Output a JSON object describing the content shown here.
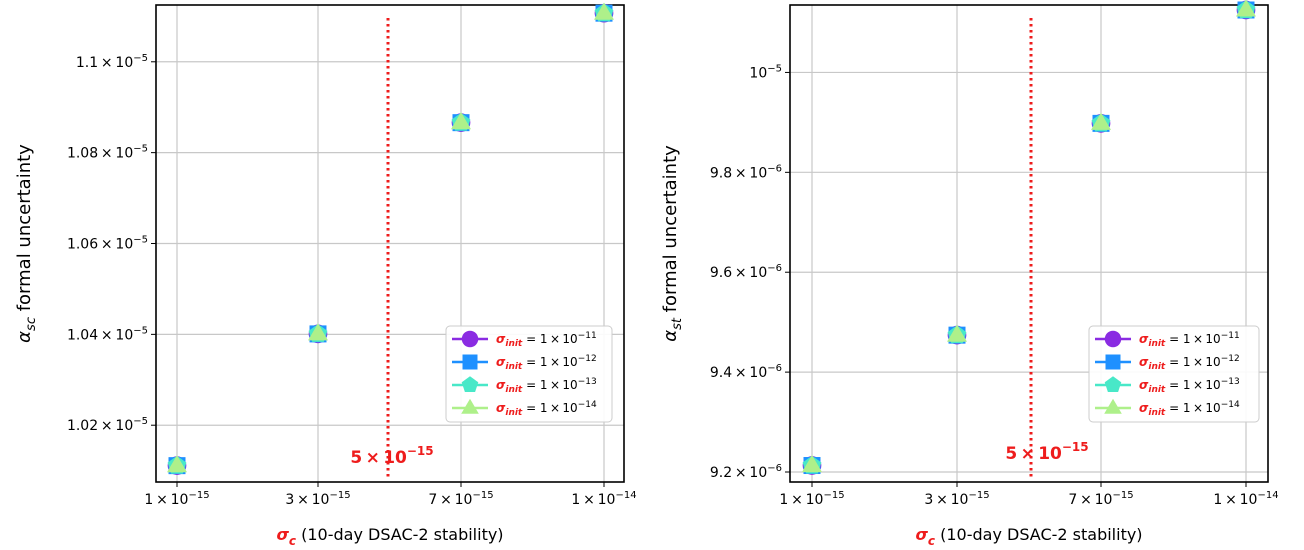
{
  "chart_data": [
    {
      "type": "scatter",
      "ylabel": {
        "symbol": "α",
        "sub": "sc",
        "text": "formal uncertainty"
      },
      "xlabel": {
        "symbol": "σ",
        "sub": "c",
        "text": "(10-day DSAC-2 stability)"
      },
      "x": [
        "1e-15",
        "3e-15",
        "7e-15",
        "1e-14"
      ],
      "xtick_labels": [
        {
          "mant": "1",
          "exp": "−15"
        },
        {
          "mant": "3",
          "exp": "−15"
        },
        {
          "mant": "7",
          "exp": "−15"
        },
        {
          "mant": "1",
          "exp": "−14"
        }
      ],
      "ylim": [
        1.0075e-05,
        1.1125e-05
      ],
      "yticks": [
        1.02e-05,
        1.04e-05,
        1.06e-05,
        1.08e-05,
        1.1e-05
      ],
      "ytick_labels": [
        {
          "mant": "1.02",
          "exp": "−5"
        },
        {
          "mant": "1.04",
          "exp": "−5"
        },
        {
          "mant": "1.06",
          "exp": "−5"
        },
        {
          "mant": "1.08",
          "exp": "−5"
        },
        {
          "mant": "1.1",
          "exp": "−5"
        }
      ],
      "vline": {
        "x": "5e-15",
        "label": {
          "mant": "5",
          "exp": "−15"
        },
        "color": "#ee1c1c"
      },
      "series": [
        {
          "name": {
            "symbol": "σ",
            "sub": "init",
            "mant": "1",
            "exp": "−11"
          },
          "marker": "circle",
          "color": "#8a2be2",
          "values": [
            1.0111e-05,
            1.0401e-05,
            1.0866e-05,
            1.1107e-05
          ]
        },
        {
          "name": {
            "symbol": "σ",
            "sub": "init",
            "mant": "1",
            "exp": "−12"
          },
          "marker": "square",
          "color": "#1e90ff",
          "values": [
            1.0111e-05,
            1.0401e-05,
            1.0866e-05,
            1.1107e-05
          ]
        },
        {
          "name": {
            "symbol": "σ",
            "sub": "init",
            "mant": "1",
            "exp": "−13"
          },
          "marker": "pentagon",
          "color": "#48e8c8",
          "values": [
            1.0111e-05,
            1.0401e-05,
            1.0866e-05,
            1.1107e-05
          ]
        },
        {
          "name": {
            "symbol": "σ",
            "sub": "init",
            "mant": "1",
            "exp": "−14"
          },
          "marker": "triangle",
          "color": "#aef08a",
          "values": [
            1.0111e-05,
            1.0401e-05,
            1.0866e-05,
            1.1107e-05
          ]
        }
      ],
      "grid": true,
      "legend": "lower-right"
    },
    {
      "type": "scatter",
      "ylabel": {
        "symbol": "α",
        "sub": "st",
        "text": "formal uncertainty"
      },
      "xlabel": {
        "symbol": "σ",
        "sub": "c",
        "text": "(10-day DSAC-2 stability)"
      },
      "x": [
        "1e-15",
        "3e-15",
        "7e-15",
        "1e-14"
      ],
      "xtick_labels": [
        {
          "mant": "1",
          "exp": "−15"
        },
        {
          "mant": "3",
          "exp": "−15"
        },
        {
          "mant": "7",
          "exp": "−15"
        },
        {
          "mant": "1",
          "exp": "−14"
        }
      ],
      "ylim": [
        9.18e-06,
        1.0135e-05
      ],
      "yticks": [
        9.2e-06,
        9.4e-06,
        9.6e-06,
        9.8e-06,
        1e-05
      ],
      "ytick_labels": [
        {
          "mant": "9.2",
          "exp": "−6"
        },
        {
          "mant": "9.4",
          "exp": "−6"
        },
        {
          "mant": "9.6",
          "exp": "−6"
        },
        {
          "mant": "9.8",
          "exp": "−6"
        },
        {
          "mant": "",
          "exp": "−5"
        }
      ],
      "vline": {
        "x": "5e-15",
        "label": {
          "mant": "5",
          "exp": "−15"
        },
        "color": "#ee1c1c"
      },
      "series": [
        {
          "name": {
            "symbol": "σ",
            "sub": "init",
            "mant": "1",
            "exp": "−11"
          },
          "marker": "circle",
          "color": "#8a2be2",
          "values": [
            9.213e-06,
            9.474e-06,
            9.898e-06,
            1.0125e-05
          ]
        },
        {
          "name": {
            "symbol": "σ",
            "sub": "init",
            "mant": "1",
            "exp": "−12"
          },
          "marker": "square",
          "color": "#1e90ff",
          "values": [
            9.213e-06,
            9.474e-06,
            9.898e-06,
            1.0125e-05
          ]
        },
        {
          "name": {
            "symbol": "σ",
            "sub": "init",
            "mant": "1",
            "exp": "−13"
          },
          "marker": "pentagon",
          "color": "#48e8c8",
          "values": [
            9.213e-06,
            9.474e-06,
            9.898e-06,
            1.0125e-05
          ]
        },
        {
          "name": {
            "symbol": "σ",
            "sub": "init",
            "mant": "1",
            "exp": "−14"
          },
          "marker": "triangle",
          "color": "#aef08a",
          "values": [
            9.213e-06,
            9.474e-06,
            9.898e-06,
            1.0125e-05
          ]
        }
      ],
      "grid": true,
      "legend": "lower-right"
    }
  ]
}
